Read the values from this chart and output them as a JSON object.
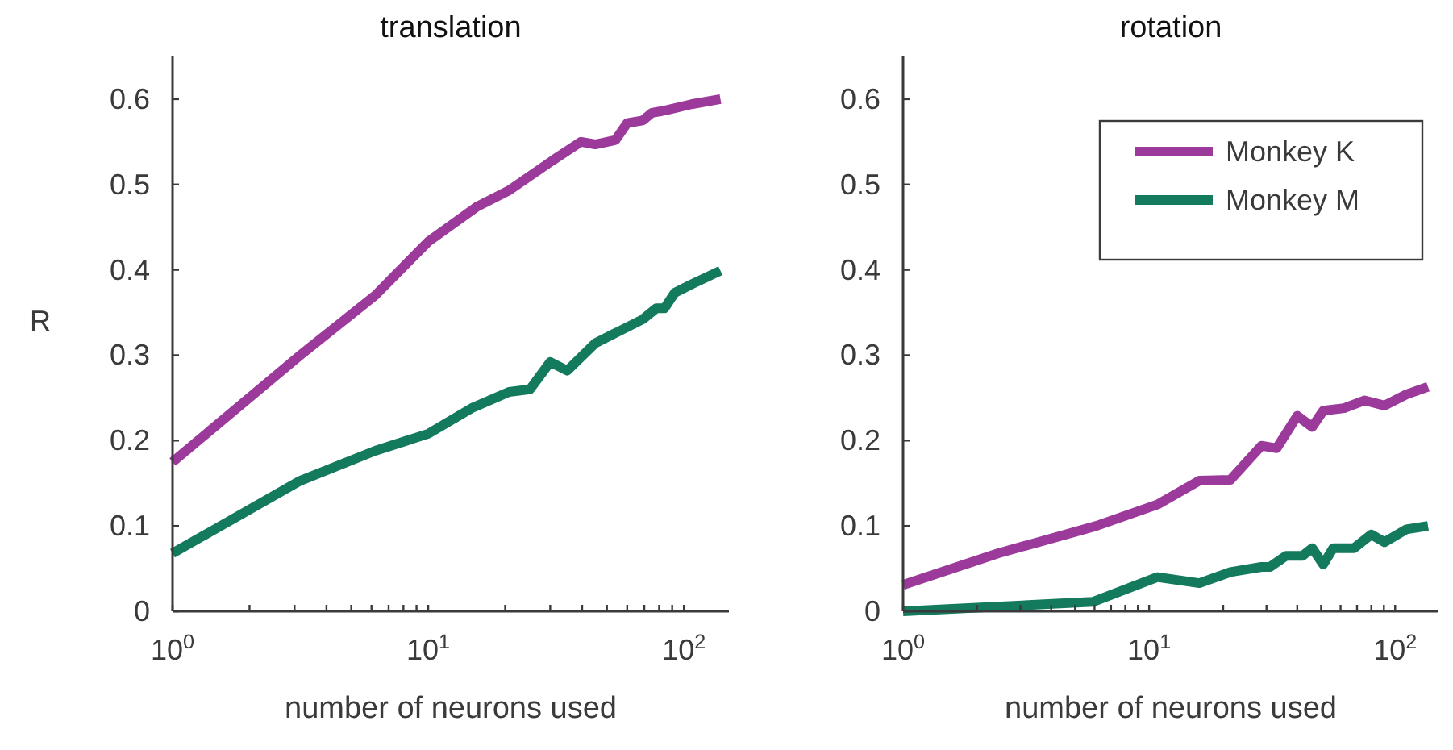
{
  "chart_data": [
    {
      "type": "line",
      "title": "translation",
      "xlabel": "number of neurons used",
      "ylabel": "R",
      "log": "x",
      "xlim": [
        1,
        150
      ],
      "ylim": [
        0,
        0.65
      ],
      "xticks": [
        {
          "value": 1,
          "label": "10$^{0}$"
        },
        {
          "value": 2,
          "label": null
        },
        {
          "value": 3,
          "label": null
        },
        {
          "value": 4,
          "label": null
        },
        {
          "value": 5,
          "label": null
        },
        {
          "value": 6,
          "label": null
        },
        {
          "value": 7,
          "label": null
        },
        {
          "value": 8,
          "label": null
        },
        {
          "value": 9,
          "label": null
        },
        {
          "value": 10,
          "label": "10$^{1}$"
        },
        {
          "value": 20,
          "label": null
        },
        {
          "value": 30,
          "label": null
        },
        {
          "value": 40,
          "label": null
        },
        {
          "value": 50,
          "label": null
        },
        {
          "value": 60,
          "label": null
        },
        {
          "value": 70,
          "label": null
        },
        {
          "value": 80,
          "label": null
        },
        {
          "value": 90,
          "label": null
        },
        {
          "value": 100,
          "label": "10$^{2}$"
        }
      ],
      "yticks": [
        0,
        0.1,
        0.2,
        0.3,
        0.4,
        0.5,
        0.6
      ],
      "grid": false,
      "legend": false,
      "line_style": "solid",
      "series": [
        {
          "color": "#9b3a9b",
          "x": [
            1,
            3.16,
            6.2,
            10,
            15.5,
            20.7,
            30.6,
            39.6,
            45,
            54,
            60,
            69,
            75,
            82,
            88,
            107,
            139
          ],
          "values": [
            0.175,
            0.3,
            0.37,
            0.433,
            0.474,
            0.493,
            0.528,
            0.55,
            0.547,
            0.552,
            0.572,
            0.575,
            0.584,
            0.586,
            0.588,
            0.594,
            0.6
          ]
        },
        {
          "color": "#137a5e",
          "x": [
            1,
            3.16,
            6.2,
            10,
            14.8,
            20.7,
            25,
            30,
            35,
            45,
            54,
            69,
            78,
            84,
            92,
            107,
            139
          ],
          "values": [
            0.068,
            0.153,
            0.188,
            0.208,
            0.238,
            0.257,
            0.26,
            0.292,
            0.282,
            0.314,
            0.326,
            0.342,
            0.355,
            0.355,
            0.373,
            0.383,
            0.399
          ]
        }
      ]
    },
    {
      "type": "line",
      "title": "rotation",
      "xlabel": "number of neurons used",
      "log": "x",
      "xlim": [
        1,
        150
      ],
      "ylim": [
        0,
        0.65
      ],
      "xticks": [
        {
          "value": 1,
          "label": "10$^{0}$"
        },
        {
          "value": 2,
          "label": null
        },
        {
          "value": 3,
          "label": null
        },
        {
          "value": 4,
          "label": null
        },
        {
          "value": 5,
          "label": null
        },
        {
          "value": 6,
          "label": null
        },
        {
          "value": 7,
          "label": null
        },
        {
          "value": 8,
          "label": null
        },
        {
          "value": 9,
          "label": null
        },
        {
          "value": 10,
          "label": "10$^{1}$"
        },
        {
          "value": 20,
          "label": null
        },
        {
          "value": 30,
          "label": null
        },
        {
          "value": 40,
          "label": null
        },
        {
          "value": 50,
          "label": null
        },
        {
          "value": 60,
          "label": null
        },
        {
          "value": 70,
          "label": null
        },
        {
          "value": 80,
          "label": null
        },
        {
          "value": 90,
          "label": null
        },
        {
          "value": 100,
          "label": "10$^{2}$"
        }
      ],
      "yticks": [
        0,
        0.1,
        0.2,
        0.3,
        0.4,
        0.5,
        0.6
      ],
      "grid": false,
      "legend": "top right",
      "line_style": "solid",
      "series": [
        {
          "name": "Monkey K",
          "color": "#9b3a9b",
          "x": [
            1,
            2.44,
            6.1,
            10.8,
            16,
            21.4,
            28.6,
            33,
            40,
            46,
            51,
            62,
            75,
            90.5,
            111,
            136
          ],
          "values": [
            0.031,
            0.068,
            0.1,
            0.125,
            0.153,
            0.154,
            0.194,
            0.191,
            0.229,
            0.216,
            0.235,
            0.238,
            0.247,
            0.241,
            0.254,
            0.263
          ]
        },
        {
          "name": "Monkey M",
          "color": "#137a5e",
          "x": [
            1,
            5.9,
            10.8,
            16,
            21.4,
            28.6,
            31,
            36,
            42,
            46,
            51,
            56,
            68,
            80,
            90.5,
            111,
            136
          ],
          "values": [
            0,
            0.011,
            0.04,
            0.033,
            0.046,
            0.052,
            0.052,
            0.065,
            0.065,
            0.074,
            0.055,
            0.074,
            0.074,
            0.09,
            0.081,
            0.096,
            0.1
          ]
        }
      ]
    }
  ]
}
